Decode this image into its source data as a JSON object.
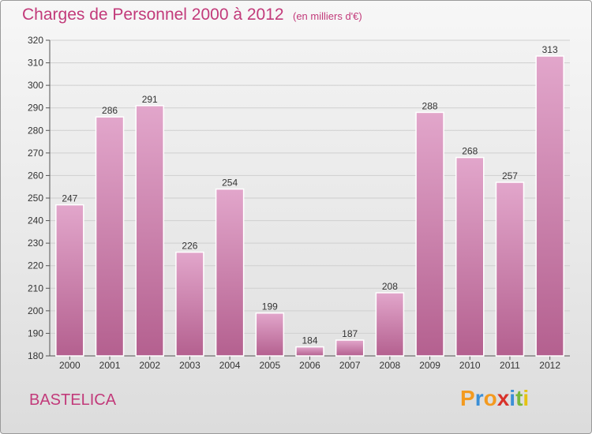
{
  "header": {
    "title": "Charges de Personnel 2000 à 2012",
    "subtitle": "(en milliers d'€)"
  },
  "footer": {
    "place": "BASTELICA",
    "logo": "Proxiti"
  },
  "colors": {
    "accent": "#c23a7a",
    "bar_light": "#e2a6cb",
    "bar_dark": "#b4608f",
    "logo_letters": [
      "#f39a1f",
      "#3b8fd6",
      "#f39a1f",
      "#d8322a",
      "#3b8fd6",
      "#79b83a",
      "#e5c212"
    ]
  },
  "chart_data": {
    "type": "bar",
    "title": "Charges de Personnel 2000 à 2012",
    "subtitle": "(en milliers d'€)",
    "categories": [
      "2000",
      "2001",
      "2002",
      "2003",
      "2004",
      "2005",
      "2006",
      "2007",
      "2008",
      "2009",
      "2010",
      "2011",
      "2012"
    ],
    "values": [
      247,
      286,
      291,
      226,
      254,
      199,
      184,
      187,
      208,
      288,
      268,
      257,
      313
    ],
    "ylim": [
      180,
      320
    ],
    "yticks": [
      180,
      190,
      200,
      210,
      220,
      230,
      240,
      250,
      260,
      270,
      280,
      290,
      300,
      310,
      320
    ],
    "grid": true,
    "data_labels": true
  }
}
